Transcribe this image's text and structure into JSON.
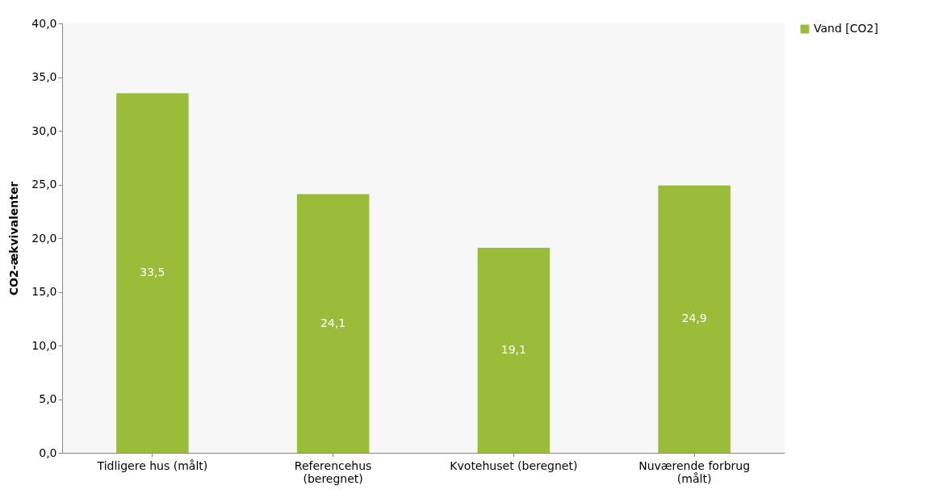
{
  "chart_data": {
    "type": "bar",
    "ylabel": "CO2-ækvivalenter",
    "categories": [
      "Tidligere hus (målt)",
      "Referencehus (beregnet)",
      "Kvotehuset (beregnet)",
      "Nuværende forbrug (målt)"
    ],
    "series": [
      {
        "name": "Vand [CO2]",
        "color": "#9bbb3b",
        "values": [
          33.5,
          24.1,
          19.1,
          24.9
        ],
        "value_labels": [
          "33,5",
          "24,1",
          "19,1",
          "24,9"
        ]
      }
    ],
    "ylim": [
      0,
      40
    ],
    "yticks": [
      {
        "value": 0,
        "label": "0,0"
      },
      {
        "value": 5,
        "label": "5,0"
      },
      {
        "value": 10,
        "label": "10,0"
      },
      {
        "value": 15,
        "label": "15,0"
      },
      {
        "value": 20,
        "label": "20,0"
      },
      {
        "value": 25,
        "label": "25,0"
      },
      {
        "value": 30,
        "label": "30,0"
      },
      {
        "value": 35,
        "label": "35,0"
      },
      {
        "value": 40,
        "label": "40,0"
      }
    ],
    "grid": false,
    "legend": "right"
  }
}
